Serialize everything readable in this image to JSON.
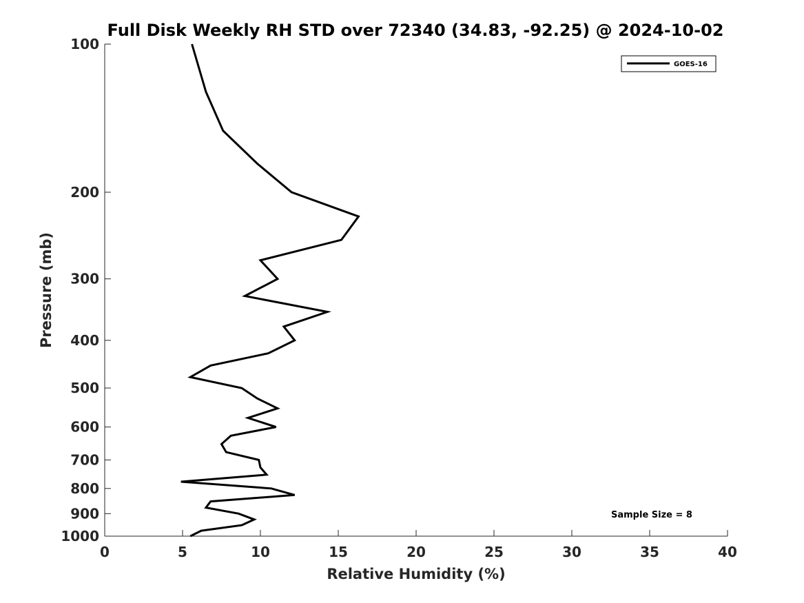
{
  "chart_data": {
    "type": "line",
    "title": "Full Disk Weekly RH STD over 72340 (34.83, -92.25) @ 2024-10-02",
    "xlabel": "Relative Humidity (%)",
    "ylabel": "Pressure (mb)",
    "xlim": [
      0,
      40
    ],
    "ylim": [
      100,
      1000
    ],
    "yscale": "log",
    "y_reversed": true,
    "grid": false,
    "legend_position": "top-right",
    "x_ticks": [
      0,
      5,
      10,
      15,
      20,
      25,
      30,
      35,
      40
    ],
    "y_ticks": [
      100,
      200,
      300,
      400,
      500,
      600,
      700,
      800,
      900,
      1000
    ],
    "series": [
      {
        "name": "GOES-16",
        "color": "#000000",
        "points": [
          {
            "x": 5.6,
            "p": 100
          },
          {
            "x": 6.5,
            "p": 125
          },
          {
            "x": 7.6,
            "p": 150
          },
          {
            "x": 9.8,
            "p": 175
          },
          {
            "x": 12.0,
            "p": 200
          },
          {
            "x": 16.3,
            "p": 224
          },
          {
            "x": 15.2,
            "p": 250
          },
          {
            "x": 10.0,
            "p": 275
          },
          {
            "x": 11.1,
            "p": 300
          },
          {
            "x": 9.0,
            "p": 325
          },
          {
            "x": 14.3,
            "p": 350
          },
          {
            "x": 11.5,
            "p": 375
          },
          {
            "x": 12.2,
            "p": 400
          },
          {
            "x": 10.5,
            "p": 425
          },
          {
            "x": 6.8,
            "p": 450
          },
          {
            "x": 5.5,
            "p": 475
          },
          {
            "x": 8.8,
            "p": 500
          },
          {
            "x": 9.8,
            "p": 525
          },
          {
            "x": 11.1,
            "p": 550
          },
          {
            "x": 9.2,
            "p": 575
          },
          {
            "x": 11.0,
            "p": 600
          },
          {
            "x": 8.1,
            "p": 625
          },
          {
            "x": 7.5,
            "p": 650
          },
          {
            "x": 7.8,
            "p": 675
          },
          {
            "x": 9.9,
            "p": 700
          },
          {
            "x": 10.0,
            "p": 725
          },
          {
            "x": 10.4,
            "p": 750
          },
          {
            "x": 4.9,
            "p": 775
          },
          {
            "x": 10.7,
            "p": 800
          },
          {
            "x": 12.2,
            "p": 825
          },
          {
            "x": 6.8,
            "p": 850
          },
          {
            "x": 6.5,
            "p": 875
          },
          {
            "x": 8.6,
            "p": 900
          },
          {
            "x": 9.6,
            "p": 925
          },
          {
            "x": 8.8,
            "p": 950
          },
          {
            "x": 6.2,
            "p": 975
          },
          {
            "x": 5.5,
            "p": 1000
          }
        ]
      }
    ],
    "annotation": "Sample Size = 8"
  }
}
